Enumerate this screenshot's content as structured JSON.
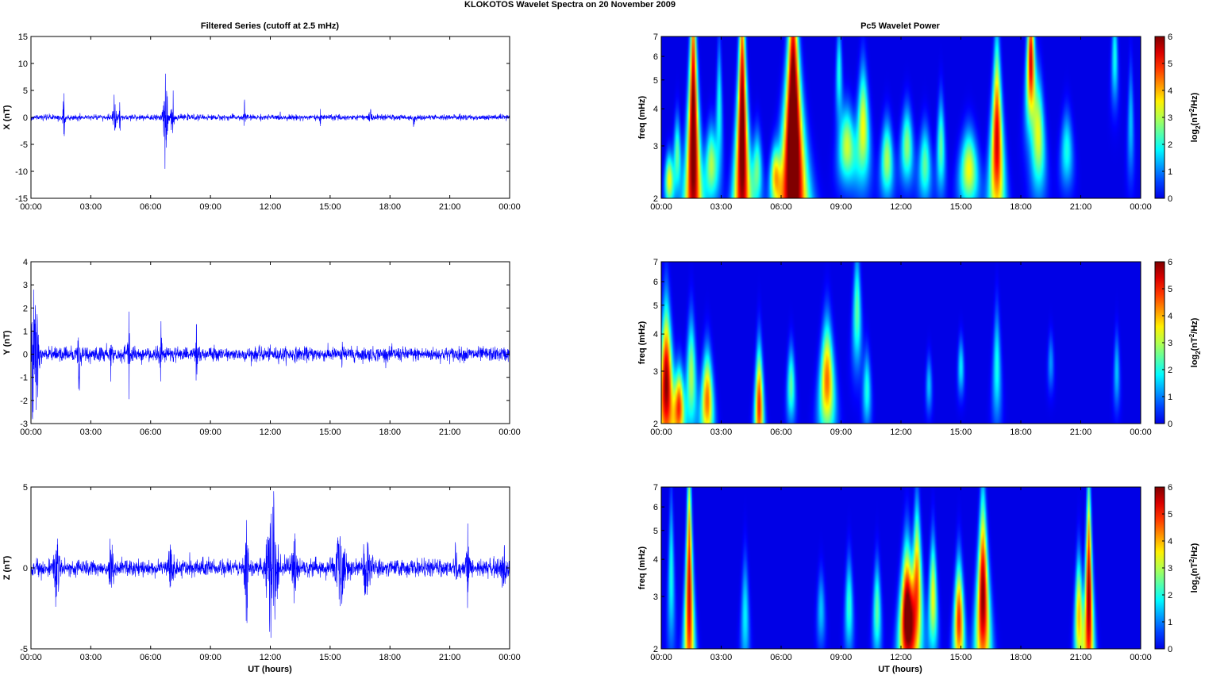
{
  "figure": {
    "title": "KLOKOTOS Wavelet Spectra on 20 November  2009",
    "left_title": "Filtered Series (cutoff at 2.5 mHz)",
    "right_title": "Pc5 Wavelet Power",
    "xlabel": "UT (hours)",
    "freq_label": "freq (mHz)",
    "colorbar_label_base": "log",
    "colorbar_label_sub": "2",
    "colorbar_label_paren": "(nT",
    "colorbar_label_sup": "2",
    "colorbar_label_tail": "/Hz)",
    "colors": {
      "trace": "#0000ff",
      "spectrum_bg": "#00008f"
    }
  },
  "chart_data": [
    {
      "type": "line",
      "id": "x",
      "ylabel": "X (nT)",
      "ylim": [
        -15,
        15
      ],
      "yticks": [
        "-15",
        "-10",
        "-5",
        "0",
        "5",
        "10",
        "15"
      ],
      "xlim": [
        0,
        24
      ],
      "xticks": [
        "00:00",
        "03:00",
        "06:00",
        "09:00",
        "12:00",
        "15:00",
        "18:00",
        "21:00",
        "00:00"
      ],
      "baseline_noise": 0.25,
      "bursts": [
        {
          "t": 1.65,
          "amp": 6.5,
          "width": 0.05
        },
        {
          "t": 4.2,
          "amp": 5.0,
          "width": 0.1
        },
        {
          "t": 4.45,
          "amp": 3.0,
          "width": 0.05
        },
        {
          "t": 6.75,
          "amp": 11.0,
          "width": 0.12
        },
        {
          "t": 7.1,
          "amp": 7.0,
          "width": 0.08
        },
        {
          "t": 10.7,
          "amp": 3.5,
          "width": 0.05
        },
        {
          "t": 14.5,
          "amp": 2.0,
          "width": 0.05
        },
        {
          "t": 17.0,
          "amp": 1.5,
          "width": 0.1
        },
        {
          "t": 19.2,
          "amp": 3.0,
          "width": 0.05
        }
      ]
    },
    {
      "type": "line",
      "id": "y",
      "ylabel": "Y (nT)",
      "ylim": [
        -3,
        4
      ],
      "yticks": [
        "-3",
        "-2",
        "-1",
        "0",
        "1",
        "2",
        "3",
        "4"
      ],
      "xlim": [
        0,
        24
      ],
      "xticks": [
        "00:00",
        "03:00",
        "06:00",
        "09:00",
        "12:00",
        "15:00",
        "18:00",
        "21:00",
        "00:00"
      ],
      "baseline_noise": 0.15,
      "bursts": [
        {
          "t": 0.1,
          "amp": 3.3,
          "width": 0.15
        },
        {
          "t": 0.3,
          "amp": 2.5,
          "width": 0.15
        },
        {
          "t": 2.4,
          "amp": 1.8,
          "width": 0.08
        },
        {
          "t": 4.0,
          "amp": 1.5,
          "width": 0.05
        },
        {
          "t": 4.9,
          "amp": 2.5,
          "width": 0.06
        },
        {
          "t": 6.5,
          "amp": 1.5,
          "width": 0.08
        },
        {
          "t": 8.3,
          "amp": 1.3,
          "width": 0.08
        },
        {
          "t": 15.6,
          "amp": 0.7,
          "width": 0.05
        }
      ]
    },
    {
      "type": "line",
      "id": "z",
      "ylabel": "Z (nT)",
      "ylim": [
        -5,
        5
      ],
      "yticks": [
        "-5",
        "0",
        "5"
      ],
      "xlim": [
        0,
        24
      ],
      "xticks": [
        "00:00",
        "03:00",
        "06:00",
        "09:00",
        "12:00",
        "15:00",
        "18:00",
        "21:00",
        "00:00"
      ],
      "xlabel_show": true,
      "baseline_noise": 0.25,
      "bursts": [
        {
          "t": 1.3,
          "amp": 2.3,
          "width": 0.2
        },
        {
          "t": 4.0,
          "amp": 1.5,
          "width": 0.2
        },
        {
          "t": 7.0,
          "amp": 1.3,
          "width": 0.2
        },
        {
          "t": 10.8,
          "amp": 4.2,
          "width": 0.1
        },
        {
          "t": 12.1,
          "amp": 4.8,
          "width": 0.35
        },
        {
          "t": 13.2,
          "amp": 2.0,
          "width": 0.2
        },
        {
          "t": 15.5,
          "amp": 2.2,
          "width": 0.4
        },
        {
          "t": 16.8,
          "amp": 1.8,
          "width": 0.3
        },
        {
          "t": 21.3,
          "amp": 2.0,
          "width": 0.1
        },
        {
          "t": 21.9,
          "amp": 3.5,
          "width": 0.08
        },
        {
          "t": 23.7,
          "amp": 1.5,
          "width": 0.2
        }
      ]
    },
    {
      "type": "heatmap",
      "id": "px",
      "ylabel": "freq (mHz)",
      "ylim": [
        2,
        7
      ],
      "yscale": "log",
      "yticks": [
        "2",
        "3",
        "4",
        "5",
        "6",
        "7"
      ],
      "xlim": [
        0,
        24
      ],
      "xticks": [
        "00:00",
        "03:00",
        "06:00",
        "09:00",
        "12:00",
        "15:00",
        "18:00",
        "21:00",
        "00:00"
      ],
      "colorbar_ticks": [
        "0",
        "1",
        "2",
        "3",
        "4",
        "5",
        "6"
      ],
      "blobs": [
        {
          "t": 0.4,
          "f": 2.3,
          "w": 0.22,
          "h": 0.14,
          "p": 3.5
        },
        {
          "t": 0.8,
          "f": 2.8,
          "w": 0.18,
          "h": 0.2,
          "p": 2.5
        },
        {
          "t": 1.6,
          "f": 3.2,
          "w": 0.3,
          "h": 0.9,
          "p": 6.5
        },
        {
          "t": 2.5,
          "f": 2.6,
          "w": 0.3,
          "h": 0.2,
          "p": 3.0
        },
        {
          "t": 2.9,
          "f": 4.0,
          "w": 0.15,
          "h": 0.35,
          "p": 2.0
        },
        {
          "t": 4.05,
          "f": 3.2,
          "w": 0.3,
          "h": 0.9,
          "p": 6.5
        },
        {
          "t": 4.8,
          "f": 2.5,
          "w": 0.25,
          "h": 0.2,
          "p": 2.5
        },
        {
          "t": 5.7,
          "f": 2.4,
          "w": 0.25,
          "h": 0.15,
          "p": 3.0
        },
        {
          "t": 6.6,
          "f": 3.2,
          "w": 0.5,
          "h": 0.9,
          "p": 7.5
        },
        {
          "t": 8.9,
          "f": 5.3,
          "w": 0.15,
          "h": 0.25,
          "p": 2.0
        },
        {
          "t": 9.3,
          "f": 3.0,
          "w": 0.4,
          "h": 0.2,
          "p": 3.2
        },
        {
          "t": 10.1,
          "f": 3.5,
          "w": 0.3,
          "h": 0.3,
          "p": 3.5
        },
        {
          "t": 11.3,
          "f": 2.7,
          "w": 0.3,
          "h": 0.2,
          "p": 3.0
        },
        {
          "t": 12.3,
          "f": 3.0,
          "w": 0.3,
          "h": 0.2,
          "p": 2.8
        },
        {
          "t": 13.2,
          "f": 2.6,
          "w": 0.3,
          "h": 0.2,
          "p": 2.5
        },
        {
          "t": 14.0,
          "f": 3.0,
          "w": 0.2,
          "h": 0.25,
          "p": 2.5
        },
        {
          "t": 15.4,
          "f": 2.5,
          "w": 0.45,
          "h": 0.2,
          "p": 3.5
        },
        {
          "t": 16.8,
          "f": 3.1,
          "w": 0.3,
          "h": 0.5,
          "p": 5.5
        },
        {
          "t": 18.5,
          "f": 5.8,
          "w": 0.2,
          "h": 0.35,
          "p": 5.5
        },
        {
          "t": 18.9,
          "f": 3.2,
          "w": 0.3,
          "h": 0.3,
          "p": 3.0
        },
        {
          "t": 20.3,
          "f": 2.9,
          "w": 0.3,
          "h": 0.2,
          "p": 2.0
        },
        {
          "t": 22.7,
          "f": 6.0,
          "w": 0.15,
          "h": 0.25,
          "p": 2.0
        },
        {
          "t": 23.5,
          "f": 3.6,
          "w": 0.15,
          "h": 0.3,
          "p": 1.5
        }
      ]
    },
    {
      "type": "heatmap",
      "id": "py",
      "ylabel": "freq (mHz)",
      "ylim": [
        2,
        7
      ],
      "yscale": "log",
      "yticks": [
        "2",
        "3",
        "4",
        "5",
        "6",
        "7"
      ],
      "xlim": [
        0,
        24
      ],
      "xticks": [
        "00:00",
        "03:00",
        "06:00",
        "09:00",
        "12:00",
        "15:00",
        "18:00",
        "21:00",
        "00:00"
      ],
      "colorbar_ticks": [
        "0",
        "1",
        "2",
        "3",
        "4",
        "5",
        "6"
      ],
      "blobs": [
        {
          "t": 0.25,
          "f": 2.7,
          "w": 0.35,
          "h": 0.4,
          "p": 6.0
        },
        {
          "t": 0.9,
          "f": 2.3,
          "w": 0.25,
          "h": 0.2,
          "p": 4.5
        },
        {
          "t": 1.5,
          "f": 2.9,
          "w": 0.25,
          "h": 0.3,
          "p": 3.0
        },
        {
          "t": 2.3,
          "f": 2.4,
          "w": 0.3,
          "h": 0.25,
          "p": 4.5
        },
        {
          "t": 4.9,
          "f": 2.3,
          "w": 0.22,
          "h": 0.3,
          "p": 5.0
        },
        {
          "t": 6.5,
          "f": 2.7,
          "w": 0.2,
          "h": 0.2,
          "p": 2.5
        },
        {
          "t": 8.3,
          "f": 2.8,
          "w": 0.35,
          "h": 0.3,
          "p": 4.5
        },
        {
          "t": 9.8,
          "f": 4.8,
          "w": 0.2,
          "h": 0.3,
          "p": 2.5
        },
        {
          "t": 10.3,
          "f": 2.6,
          "w": 0.2,
          "h": 0.2,
          "p": 2.0
        },
        {
          "t": 13.4,
          "f": 2.7,
          "w": 0.15,
          "h": 0.15,
          "p": 1.5
        },
        {
          "t": 15.0,
          "f": 3.1,
          "w": 0.15,
          "h": 0.15,
          "p": 1.8
        },
        {
          "t": 16.8,
          "f": 3.1,
          "w": 0.2,
          "h": 0.3,
          "p": 2.0
        },
        {
          "t": 19.5,
          "f": 3.2,
          "w": 0.15,
          "h": 0.15,
          "p": 1.2
        },
        {
          "t": 22.8,
          "f": 3.0,
          "w": 0.15,
          "h": 0.2,
          "p": 1.5
        }
      ]
    },
    {
      "type": "heatmap",
      "id": "pz",
      "ylabel": "freq (mHz)",
      "ylim": [
        2,
        7
      ],
      "yscale": "log",
      "yticks": [
        "2",
        "3",
        "4",
        "5",
        "6",
        "7"
      ],
      "xlim": [
        0,
        24
      ],
      "xticks": [
        "00:00",
        "03:00",
        "06:00",
        "09:00",
        "12:00",
        "15:00",
        "18:00",
        "21:00",
        "00:00"
      ],
      "xlabel_show": true,
      "colorbar_ticks": [
        "0",
        "1",
        "2",
        "3",
        "4",
        "5",
        "6"
      ],
      "blobs": [
        {
          "t": 1.4,
          "f": 3.1,
          "w": 0.2,
          "h": 0.7,
          "p": 5.5
        },
        {
          "t": 0.5,
          "f": 3.6,
          "w": 0.15,
          "h": 0.4,
          "p": 2.0
        },
        {
          "t": 4.2,
          "f": 2.6,
          "w": 0.2,
          "h": 0.3,
          "p": 1.8
        },
        {
          "t": 8.0,
          "f": 2.7,
          "w": 0.2,
          "h": 0.2,
          "p": 1.5
        },
        {
          "t": 9.4,
          "f": 2.8,
          "w": 0.2,
          "h": 0.25,
          "p": 2.2
        },
        {
          "t": 12.3,
          "f": 2.6,
          "w": 0.35,
          "h": 0.35,
          "p": 6.5
        },
        {
          "t": 12.8,
          "f": 3.3,
          "w": 0.25,
          "h": 0.4,
          "p": 4.5
        },
        {
          "t": 13.6,
          "f": 3.0,
          "w": 0.2,
          "h": 0.3,
          "p": 3.5
        },
        {
          "t": 14.9,
          "f": 2.5,
          "w": 0.25,
          "h": 0.3,
          "p": 5.0
        },
        {
          "t": 16.1,
          "f": 3.0,
          "w": 0.3,
          "h": 0.5,
          "p": 6.0
        },
        {
          "t": 20.9,
          "f": 2.6,
          "w": 0.2,
          "h": 0.3,
          "p": 4.0
        },
        {
          "t": 21.4,
          "f": 3.0,
          "w": 0.2,
          "h": 0.6,
          "p": 6.0
        },
        {
          "t": 10.8,
          "f": 2.7,
          "w": 0.2,
          "h": 0.25,
          "p": 2.5
        }
      ]
    }
  ]
}
